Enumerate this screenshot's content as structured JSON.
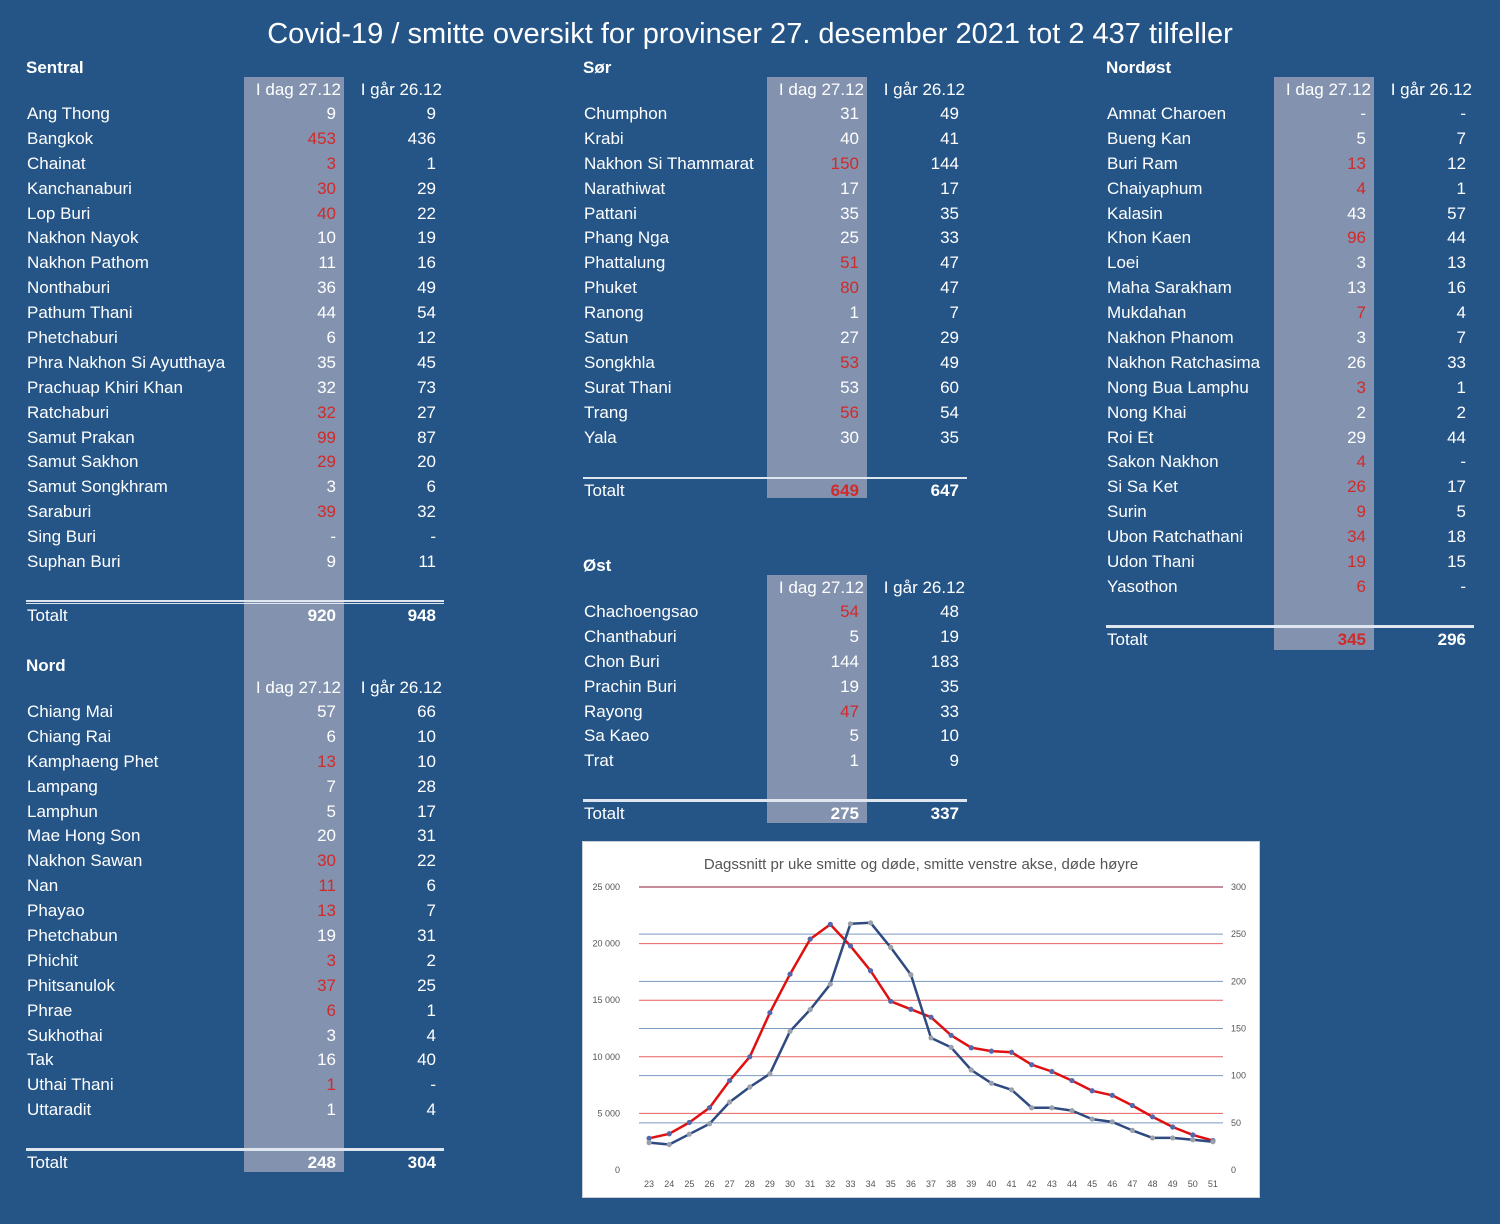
{
  "title": "Covid-19 / smitte oversikt for provinser 27. desember 2021 tot 2 437 tilfeller",
  "col_today": "I dag 27.12",
  "col_yesterday": "I går 26.12",
  "total_label": "Totalt",
  "colors": {
    "background": "#255587",
    "highlight_column": "#8393af",
    "increase": "#d02a2a",
    "infections_line": "#e01010",
    "deaths_line": "#2e4a80"
  },
  "regions": {
    "sentral": {
      "name": "Sentral",
      "rows": [
        {
          "name": "Ang Thong",
          "today": "9",
          "yesterday": "9",
          "up": false
        },
        {
          "name": "Bangkok",
          "today": "453",
          "yesterday": "436",
          "up": true
        },
        {
          "name": "Chainat",
          "today": "3",
          "yesterday": "1",
          "up": true
        },
        {
          "name": "Kanchanaburi",
          "today": "30",
          "yesterday": "29",
          "up": true
        },
        {
          "name": "Lop Buri",
          "today": "40",
          "yesterday": "22",
          "up": true
        },
        {
          "name": "Nakhon Nayok",
          "today": "10",
          "yesterday": "19",
          "up": false
        },
        {
          "name": "Nakhon Pathom",
          "today": "11",
          "yesterday": "16",
          "up": false
        },
        {
          "name": "Nonthaburi",
          "today": "36",
          "yesterday": "49",
          "up": false
        },
        {
          "name": "Pathum Thani",
          "today": "44",
          "yesterday": "54",
          "up": false
        },
        {
          "name": "Phetchaburi",
          "today": "6",
          "yesterday": "12",
          "up": false
        },
        {
          "name": "Phra Nakhon Si Ayutthaya",
          "today": "35",
          "yesterday": "45",
          "up": false
        },
        {
          "name": "Prachuap Khiri Khan",
          "today": "32",
          "yesterday": "73",
          "up": false
        },
        {
          "name": "Ratchaburi",
          "today": "32",
          "yesterday": "27",
          "up": true
        },
        {
          "name": "Samut Prakan",
          "today": "99",
          "yesterday": "87",
          "up": true
        },
        {
          "name": "Samut Sakhon",
          "today": "29",
          "yesterday": "20",
          "up": true
        },
        {
          "name": "Samut Songkhram",
          "today": "3",
          "yesterday": "6",
          "up": false
        },
        {
          "name": "Saraburi",
          "today": "39",
          "yesterday": "32",
          "up": true
        },
        {
          "name": "Sing Buri",
          "today": "-",
          "yesterday": "-",
          "up": false
        },
        {
          "name": "Suphan Buri",
          "today": "9",
          "yesterday": "11",
          "up": false
        }
      ],
      "total_today": "920",
      "total_yesterday": "948",
      "total_up": false
    },
    "nord": {
      "name": "Nord",
      "rows": [
        {
          "name": "Chiang Mai",
          "today": "57",
          "yesterday": "66",
          "up": false
        },
        {
          "name": "Chiang Rai",
          "today": "6",
          "yesterday": "10",
          "up": false
        },
        {
          "name": "Kamphaeng Phet",
          "today": "13",
          "yesterday": "10",
          "up": true
        },
        {
          "name": "Lampang",
          "today": "7",
          "yesterday": "28",
          "up": false
        },
        {
          "name": "Lamphun",
          "today": "5",
          "yesterday": "17",
          "up": false
        },
        {
          "name": "Mae Hong Son",
          "today": "20",
          "yesterday": "31",
          "up": false
        },
        {
          "name": "Nakhon Sawan",
          "today": "30",
          "yesterday": "22",
          "up": true
        },
        {
          "name": "Nan",
          "today": "11",
          "yesterday": "6",
          "up": true
        },
        {
          "name": "Phayao",
          "today": "13",
          "yesterday": "7",
          "up": true
        },
        {
          "name": "Phetchabun",
          "today": "19",
          "yesterday": "31",
          "up": false
        },
        {
          "name": "Phichit",
          "today": "3",
          "yesterday": "2",
          "up": true
        },
        {
          "name": "Phitsanulok",
          "today": "37",
          "yesterday": "25",
          "up": true
        },
        {
          "name": "Phrae",
          "today": "6",
          "yesterday": "1",
          "up": true
        },
        {
          "name": "Sukhothai",
          "today": "3",
          "yesterday": "4",
          "up": false
        },
        {
          "name": "Tak",
          "today": "16",
          "yesterday": "40",
          "up": false
        },
        {
          "name": "Uthai Thani",
          "today": "1",
          "yesterday": "-",
          "up": true
        },
        {
          "name": "Uttaradit",
          "today": "1",
          "yesterday": "4",
          "up": false
        }
      ],
      "total_today": "248",
      "total_yesterday": "304",
      "total_up": false
    },
    "sor": {
      "name": "Sør",
      "rows": [
        {
          "name": "Chumphon",
          "today": "31",
          "yesterday": "49",
          "up": false
        },
        {
          "name": "Krabi",
          "today": "40",
          "yesterday": "41",
          "up": false
        },
        {
          "name": "Nakhon Si Thammarat",
          "today": "150",
          "yesterday": "144",
          "up": true
        },
        {
          "name": "Narathiwat",
          "today": "17",
          "yesterday": "17",
          "up": false
        },
        {
          "name": "Pattani",
          "today": "35",
          "yesterday": "35",
          "up": false
        },
        {
          "name": "Phang Nga",
          "today": "25",
          "yesterday": "33",
          "up": false
        },
        {
          "name": "Phattalung",
          "today": "51",
          "yesterday": "47",
          "up": true
        },
        {
          "name": "Phuket",
          "today": "80",
          "yesterday": "47",
          "up": true
        },
        {
          "name": "Ranong",
          "today": "1",
          "yesterday": "7",
          "up": false
        },
        {
          "name": "Satun",
          "today": "27",
          "yesterday": "29",
          "up": false
        },
        {
          "name": "Songkhla",
          "today": "53",
          "yesterday": "49",
          "up": true
        },
        {
          "name": "Surat Thani",
          "today": "53",
          "yesterday": "60",
          "up": false
        },
        {
          "name": "Trang",
          "today": "56",
          "yesterday": "54",
          "up": true
        },
        {
          "name": "Yala",
          "today": "30",
          "yesterday": "35",
          "up": false
        }
      ],
      "total_today": "649",
      "total_yesterday": "647",
      "total_up": true
    },
    "ost": {
      "name": "Øst",
      "rows": [
        {
          "name": "Chachoengsao",
          "today": "54",
          "yesterday": "48",
          "up": true
        },
        {
          "name": "Chanthaburi",
          "today": "5",
          "yesterday": "19",
          "up": false
        },
        {
          "name": "Chon Buri",
          "today": "144",
          "yesterday": "183",
          "up": false
        },
        {
          "name": "Prachin Buri",
          "today": "19",
          "yesterday": "35",
          "up": false
        },
        {
          "name": "Rayong",
          "today": "47",
          "yesterday": "33",
          "up": true
        },
        {
          "name": "Sa Kaeo",
          "today": "5",
          "yesterday": "10",
          "up": false
        },
        {
          "name": "Trat",
          "today": "1",
          "yesterday": "9",
          "up": false
        }
      ],
      "total_today": "275",
      "total_yesterday": "337",
      "total_up": false
    },
    "nordost": {
      "name": "Nordøst",
      "rows": [
        {
          "name": "Amnat Charoen",
          "today": "-",
          "yesterday": "-",
          "up": false
        },
        {
          "name": "Bueng Kan",
          "today": "5",
          "yesterday": "7",
          "up": false
        },
        {
          "name": "Buri Ram",
          "today": "13",
          "yesterday": "12",
          "up": true
        },
        {
          "name": "Chaiyaphum",
          "today": "4",
          "yesterday": "1",
          "up": true
        },
        {
          "name": "Kalasin",
          "today": "43",
          "yesterday": "57",
          "up": false
        },
        {
          "name": "Khon Kaen",
          "today": "96",
          "yesterday": "44",
          "up": true
        },
        {
          "name": "Loei",
          "today": "3",
          "yesterday": "13",
          "up": false
        },
        {
          "name": "Maha Sarakham",
          "today": "13",
          "yesterday": "16",
          "up": false
        },
        {
          "name": "Mukdahan",
          "today": "7",
          "yesterday": "4",
          "up": true
        },
        {
          "name": "Nakhon Phanom",
          "today": "3",
          "yesterday": "7",
          "up": false
        },
        {
          "name": "Nakhon Ratchasima",
          "today": "26",
          "yesterday": "33",
          "up": false
        },
        {
          "name": "Nong Bua Lamphu",
          "today": "3",
          "yesterday": "1",
          "up": true
        },
        {
          "name": "Nong Khai",
          "today": "2",
          "yesterday": "2",
          "up": false
        },
        {
          "name": "Roi Et",
          "today": "29",
          "yesterday": "44",
          "up": false
        },
        {
          "name": "Sakon Nakhon",
          "today": "4",
          "yesterday": "-",
          "up": true
        },
        {
          "name": "Si Sa Ket",
          "today": "26",
          "yesterday": "17",
          "up": true
        },
        {
          "name": "Surin",
          "today": "9",
          "yesterday": "5",
          "up": true
        },
        {
          "name": "Ubon Ratchathani",
          "today": "34",
          "yesterday": "18",
          "up": true
        },
        {
          "name": "Udon Thani",
          "today": "19",
          "yesterday": "15",
          "up": true
        },
        {
          "name": "Yasothon",
          "today": "6",
          "yesterday": "-",
          "up": true
        }
      ],
      "total_today": "345",
      "total_yesterday": "296",
      "total_up": true
    }
  },
  "chart_data": {
    "type": "line",
    "title": "Dagssnitt pr uke smitte og døde, smitte venstre akse, døde høyre",
    "x": [
      23,
      24,
      25,
      26,
      27,
      28,
      29,
      30,
      31,
      32,
      33,
      34,
      35,
      36,
      37,
      38,
      39,
      40,
      41,
      42,
      43,
      44,
      45,
      46,
      47,
      48,
      49,
      50,
      51
    ],
    "y_left_ticks": [
      "0",
      "5 000",
      "10 000",
      "15 000",
      "20 000",
      "25 000"
    ],
    "y_right_ticks": [
      "0",
      "50",
      "100",
      "150",
      "200",
      "250",
      "300"
    ],
    "ylim_left": [
      0,
      25000
    ],
    "ylim_right": [
      0,
      300
    ],
    "grid": true,
    "series": [
      {
        "axis": "left",
        "color": "#e01010",
        "marker": "#5566aa",
        "values": [
          2800,
          3200,
          4200,
          5500,
          7900,
          10000,
          13900,
          17300,
          20400,
          21700,
          19800,
          17600,
          14900,
          14200,
          13500,
          11900,
          10800,
          10500,
          10400,
          9300,
          8700,
          7900,
          7000,
          6600,
          5700,
          4700,
          3800,
          3100,
          2600
        ]
      },
      {
        "axis": "right",
        "color": "#2e4a80",
        "marker": "#9aa0ac",
        "values": [
          29,
          27,
          38,
          49,
          72,
          88,
          102,
          147,
          170,
          197,
          261,
          262,
          236,
          207,
          140,
          130,
          106,
          92,
          85,
          66,
          66,
          63,
          54,
          51,
          42,
          34,
          34,
          32,
          30
        ]
      }
    ]
  }
}
